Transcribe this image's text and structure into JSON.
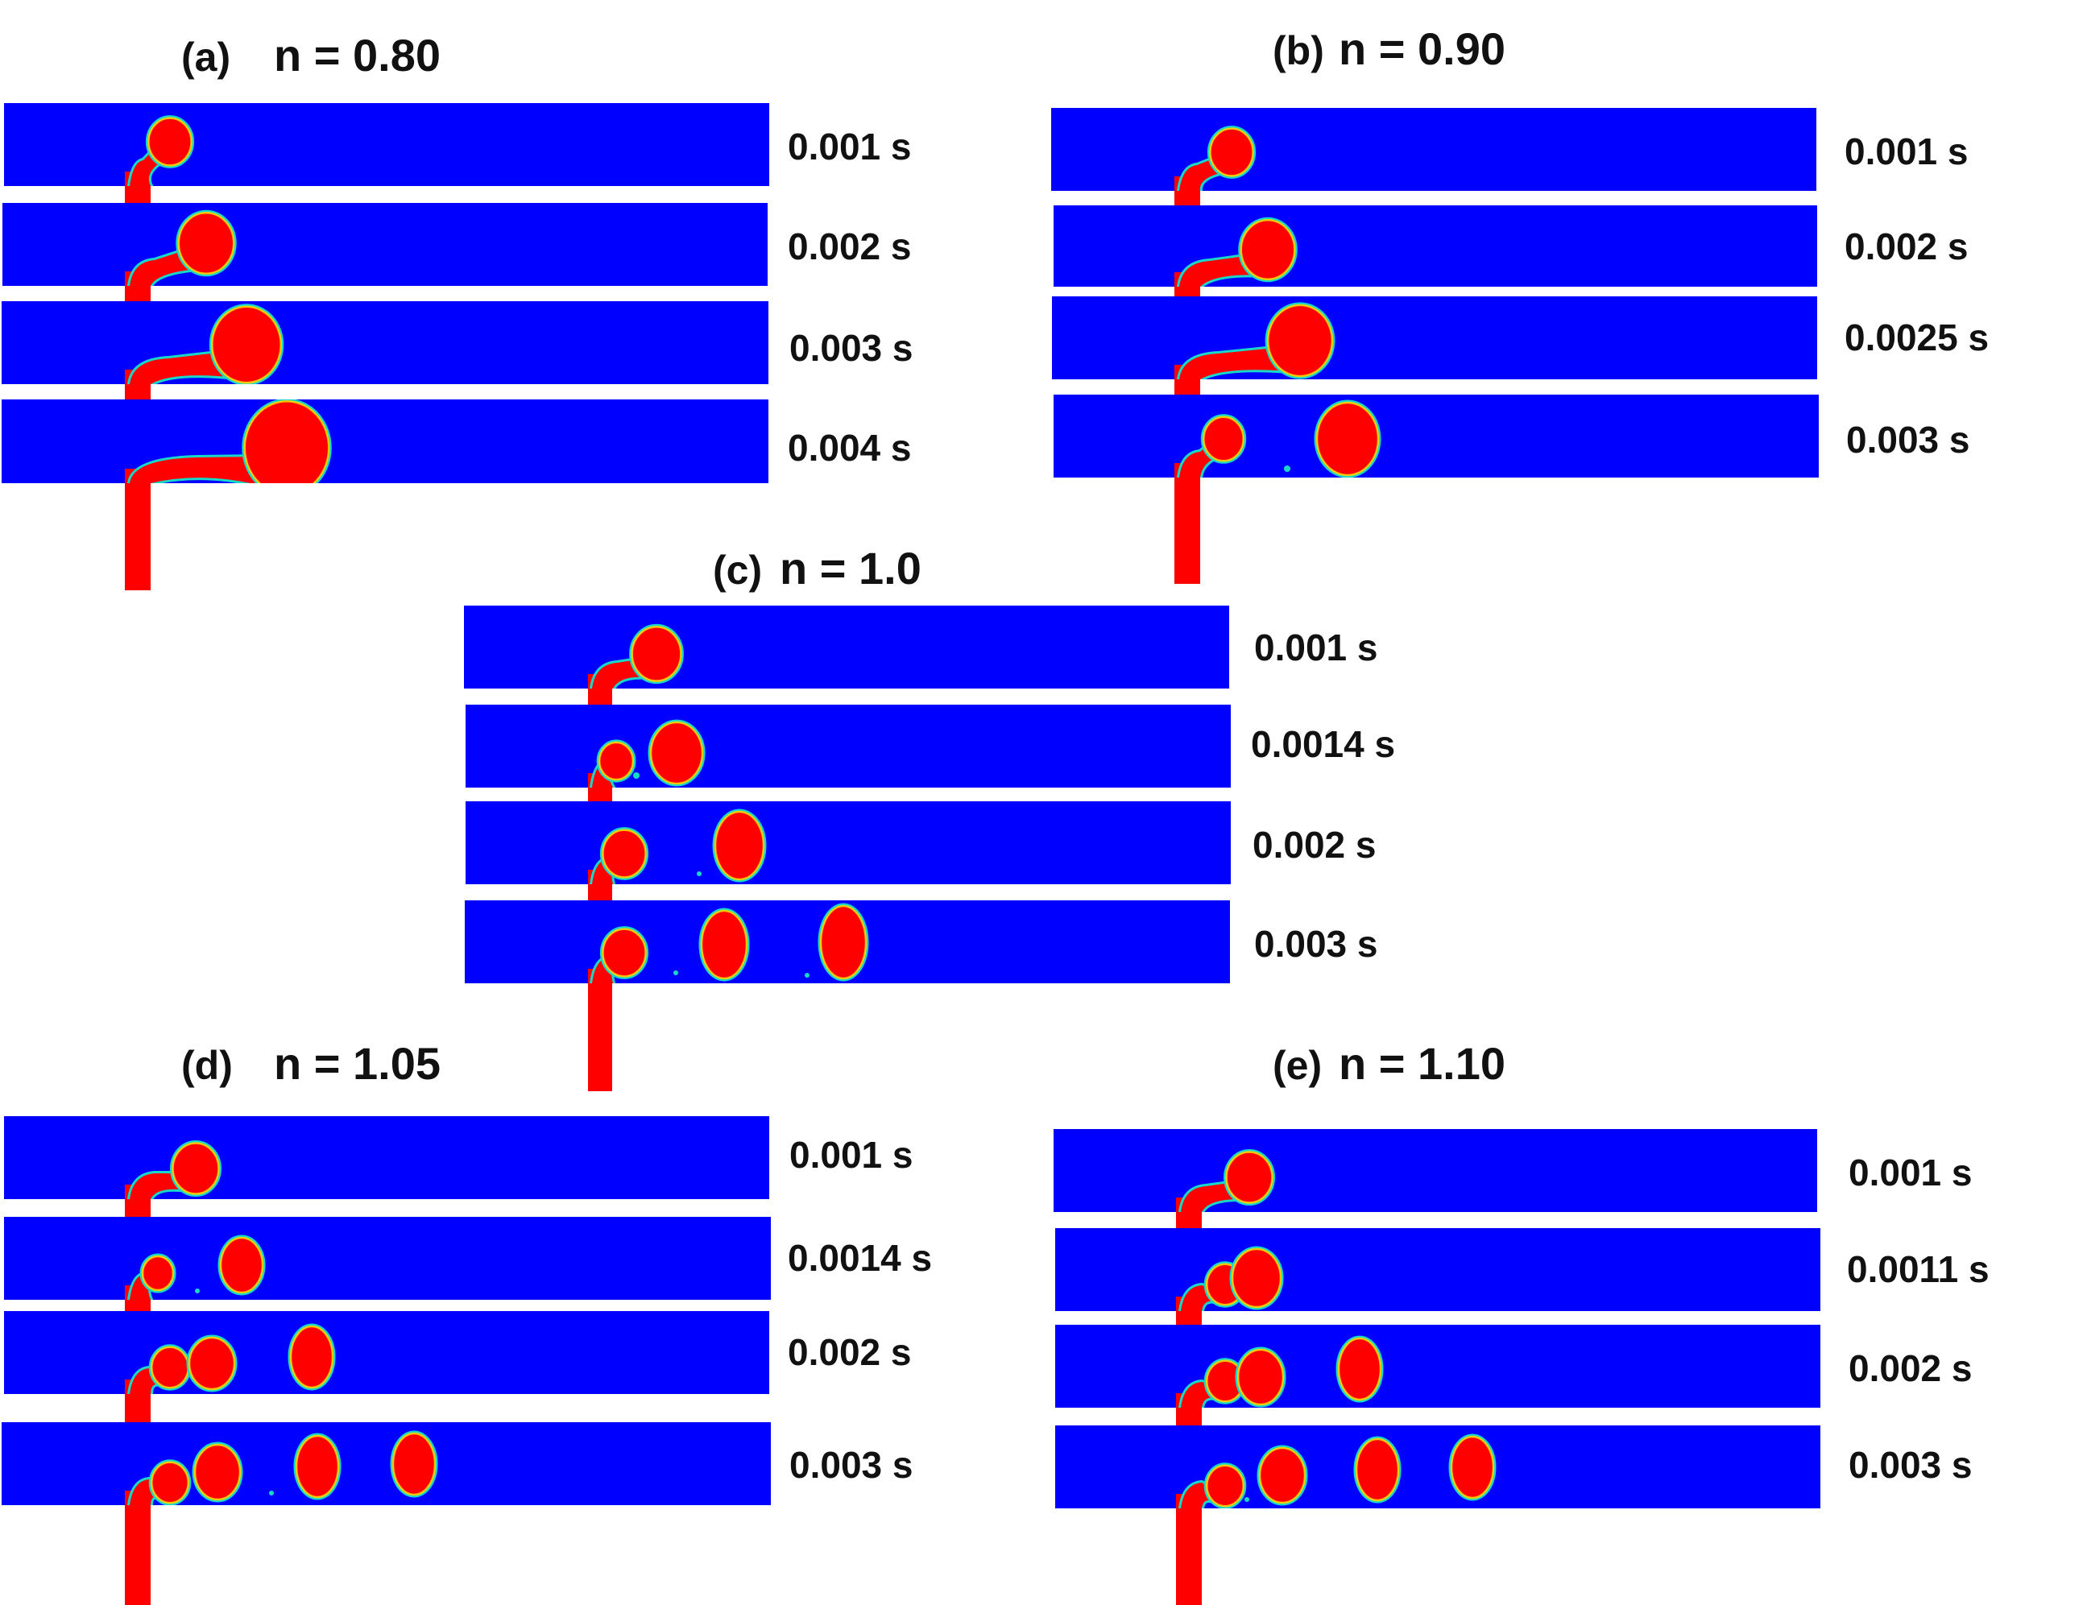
{
  "figure": {
    "panels": [
      {
        "id": "a",
        "tag": "(a)",
        "title": "n = 0.80",
        "frames": [
          "0.001 s",
          "0.002 s",
          "0.003 s",
          "0.004 s"
        ]
      },
      {
        "id": "b",
        "tag": "(b)",
        "title": "n = 0.90",
        "frames": [
          "0.001 s",
          "0.002 s",
          "0.0025 s",
          "0.003 s"
        ]
      },
      {
        "id": "c",
        "tag": "(c)",
        "title": "n = 1.0",
        "frames": [
          "0.001 s",
          "0.0014 s",
          "0.002 s",
          "0.003 s"
        ]
      },
      {
        "id": "d",
        "tag": "(d)",
        "title": "n = 1.05",
        "frames": [
          "0.001 s",
          "0.0014 s",
          "0.002 s",
          "0.003 s"
        ]
      },
      {
        "id": "e",
        "tag": "(e)",
        "title": "n = 1.10",
        "frames": [
          "0.001 s",
          "0.0011 s",
          "0.002 s",
          "0.003 s"
        ]
      }
    ],
    "colors": {
      "continuous_phase": "#0000ff",
      "dispersed_phase": "#ff0000",
      "interface_inner": "#ffd200",
      "interface_outer": "#18d8c8",
      "background": "#ffffff",
      "text": "#111111"
    }
  }
}
